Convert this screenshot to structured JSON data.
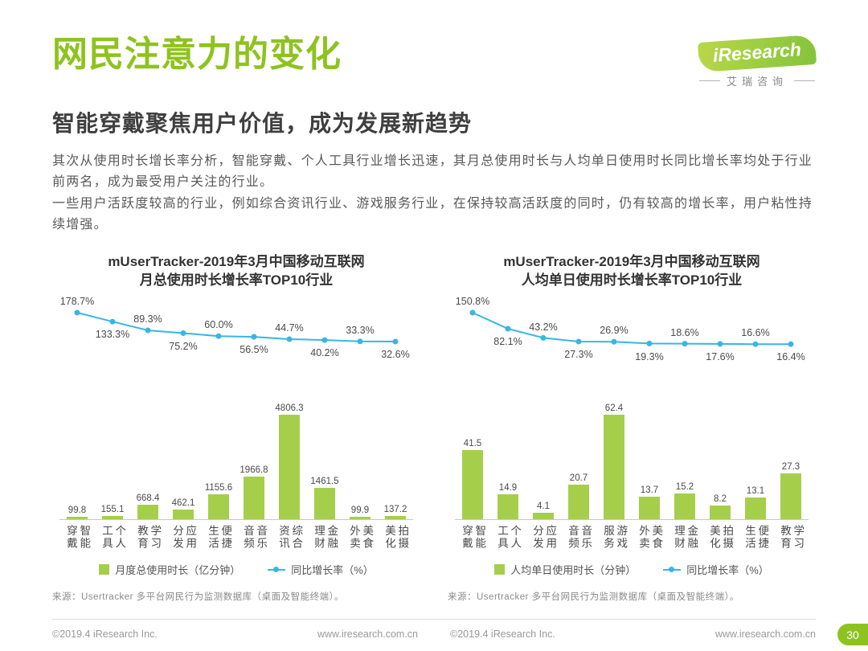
{
  "page": {
    "title": "网民注意力的变化",
    "subtitle": "智能穿戴聚焦用户价值，成为发展新趋势",
    "paragraph1": "其次从使用时长增长率分析，智能穿戴、个人工具行业增长迅速，其月总使用时长与人均单日使用时长同比增长率均处于行业前两名，成为最受用户关注的行业。",
    "paragraph2": "一些用户活跃度较高的行业，例如综合资讯行业、游戏服务行业，在保持较高活跃度的同时，仍有较高的增长率，用户粘性持续增强。",
    "page_number": "30"
  },
  "logo": {
    "name": "iResearch",
    "cn": "艾瑞咨询"
  },
  "colors": {
    "brand_green": "#8ec31f",
    "bar_green": "#a5cf4b",
    "line_blue": "#38b6e4"
  },
  "footer": {
    "columns": [
      {
        "copyright": "©2019.4 iResearch Inc.",
        "site": "www.iresearch.com.cn"
      },
      {
        "copyright": "©2019.4 iResearch Inc.",
        "site": "www.iresearch.com.cn"
      }
    ]
  },
  "chart_data": [
    {
      "type": "bar+line",
      "title": [
        "mUserTracker-2019年3月中国移动互联网",
        "月总使用时长增长率TOP10行业"
      ],
      "categories": [
        "智能穿戴",
        "个人工具",
        "学习教育",
        "应用分发",
        "便捷生活",
        "音乐音频",
        "综合资讯",
        "金融理财",
        "美食外卖",
        "拍摄美化"
      ],
      "series": [
        {
          "name": "月度总使用时长（亿分钟）",
          "type": "bar",
          "values": [
            99.8,
            155.1,
            668.4,
            462.1,
            1155.6,
            1966.8,
            4806.3,
            1461.5,
            99.9,
            137.2
          ],
          "labels": [
            "99.8",
            "155.1",
            "668.4",
            "462.1",
            "1155.6",
            "1966.8",
            "4806.3",
            "1461.5",
            "99.9",
            "137.2"
          ]
        },
        {
          "name": "同比增长率（%）",
          "type": "line",
          "values": [
            178.7,
            133.3,
            89.3,
            75.2,
            60.0,
            56.5,
            44.7,
            40.2,
            33.3,
            32.6
          ],
          "labels": [
            "178.7%",
            "133.3%",
            "89.3%",
            "75.2%",
            "60.0%",
            "56.5%",
            "44.7%",
            "40.2%",
            "33.3%",
            "32.6%"
          ]
        }
      ],
      "legend_position": "bottom",
      "grid": false,
      "source": "来源：Usertracker 多平台网民行为监测数据库（桌面及智能终端）。"
    },
    {
      "type": "bar+line",
      "title": [
        "mUserTracker-2019年3月中国移动互联网",
        "人均单日使用时长增长率TOP10行业"
      ],
      "categories": [
        "智能穿戴",
        "个人工具",
        "应用分发",
        "音乐音频",
        "游戏服务",
        "美食外卖",
        "金融理财",
        "拍摄美化",
        "便捷生活",
        "学习教育"
      ],
      "series": [
        {
          "name": "人均单日使用时长（分钟）",
          "type": "bar",
          "values": [
            41.5,
            14.9,
            4.1,
            20.7,
            62.4,
            13.7,
            15.2,
            8.2,
            13.1,
            27.3
          ],
          "labels": [
            "41.5",
            "14.9",
            "4.1",
            "20.7",
            "62.4",
            "13.7",
            "15.2",
            "8.2",
            "13.1",
            "27.3"
          ]
        },
        {
          "name": "同比增长率（%）",
          "type": "line",
          "values": [
            150.8,
            82.1,
            43.2,
            27.3,
            26.9,
            19.3,
            18.6,
            17.6,
            16.6,
            16.4
          ],
          "labels": [
            "150.8%",
            "82.1%",
            "43.2%",
            "27.3%",
            "26.9%",
            "19.3%",
            "18.6%",
            "17.6%",
            "16.6%",
            "16.4%"
          ]
        }
      ],
      "legend_position": "bottom",
      "grid": false,
      "source": "来源：Usertracker 多平台网民行为监测数据库（桌面及智能终端）。"
    }
  ]
}
